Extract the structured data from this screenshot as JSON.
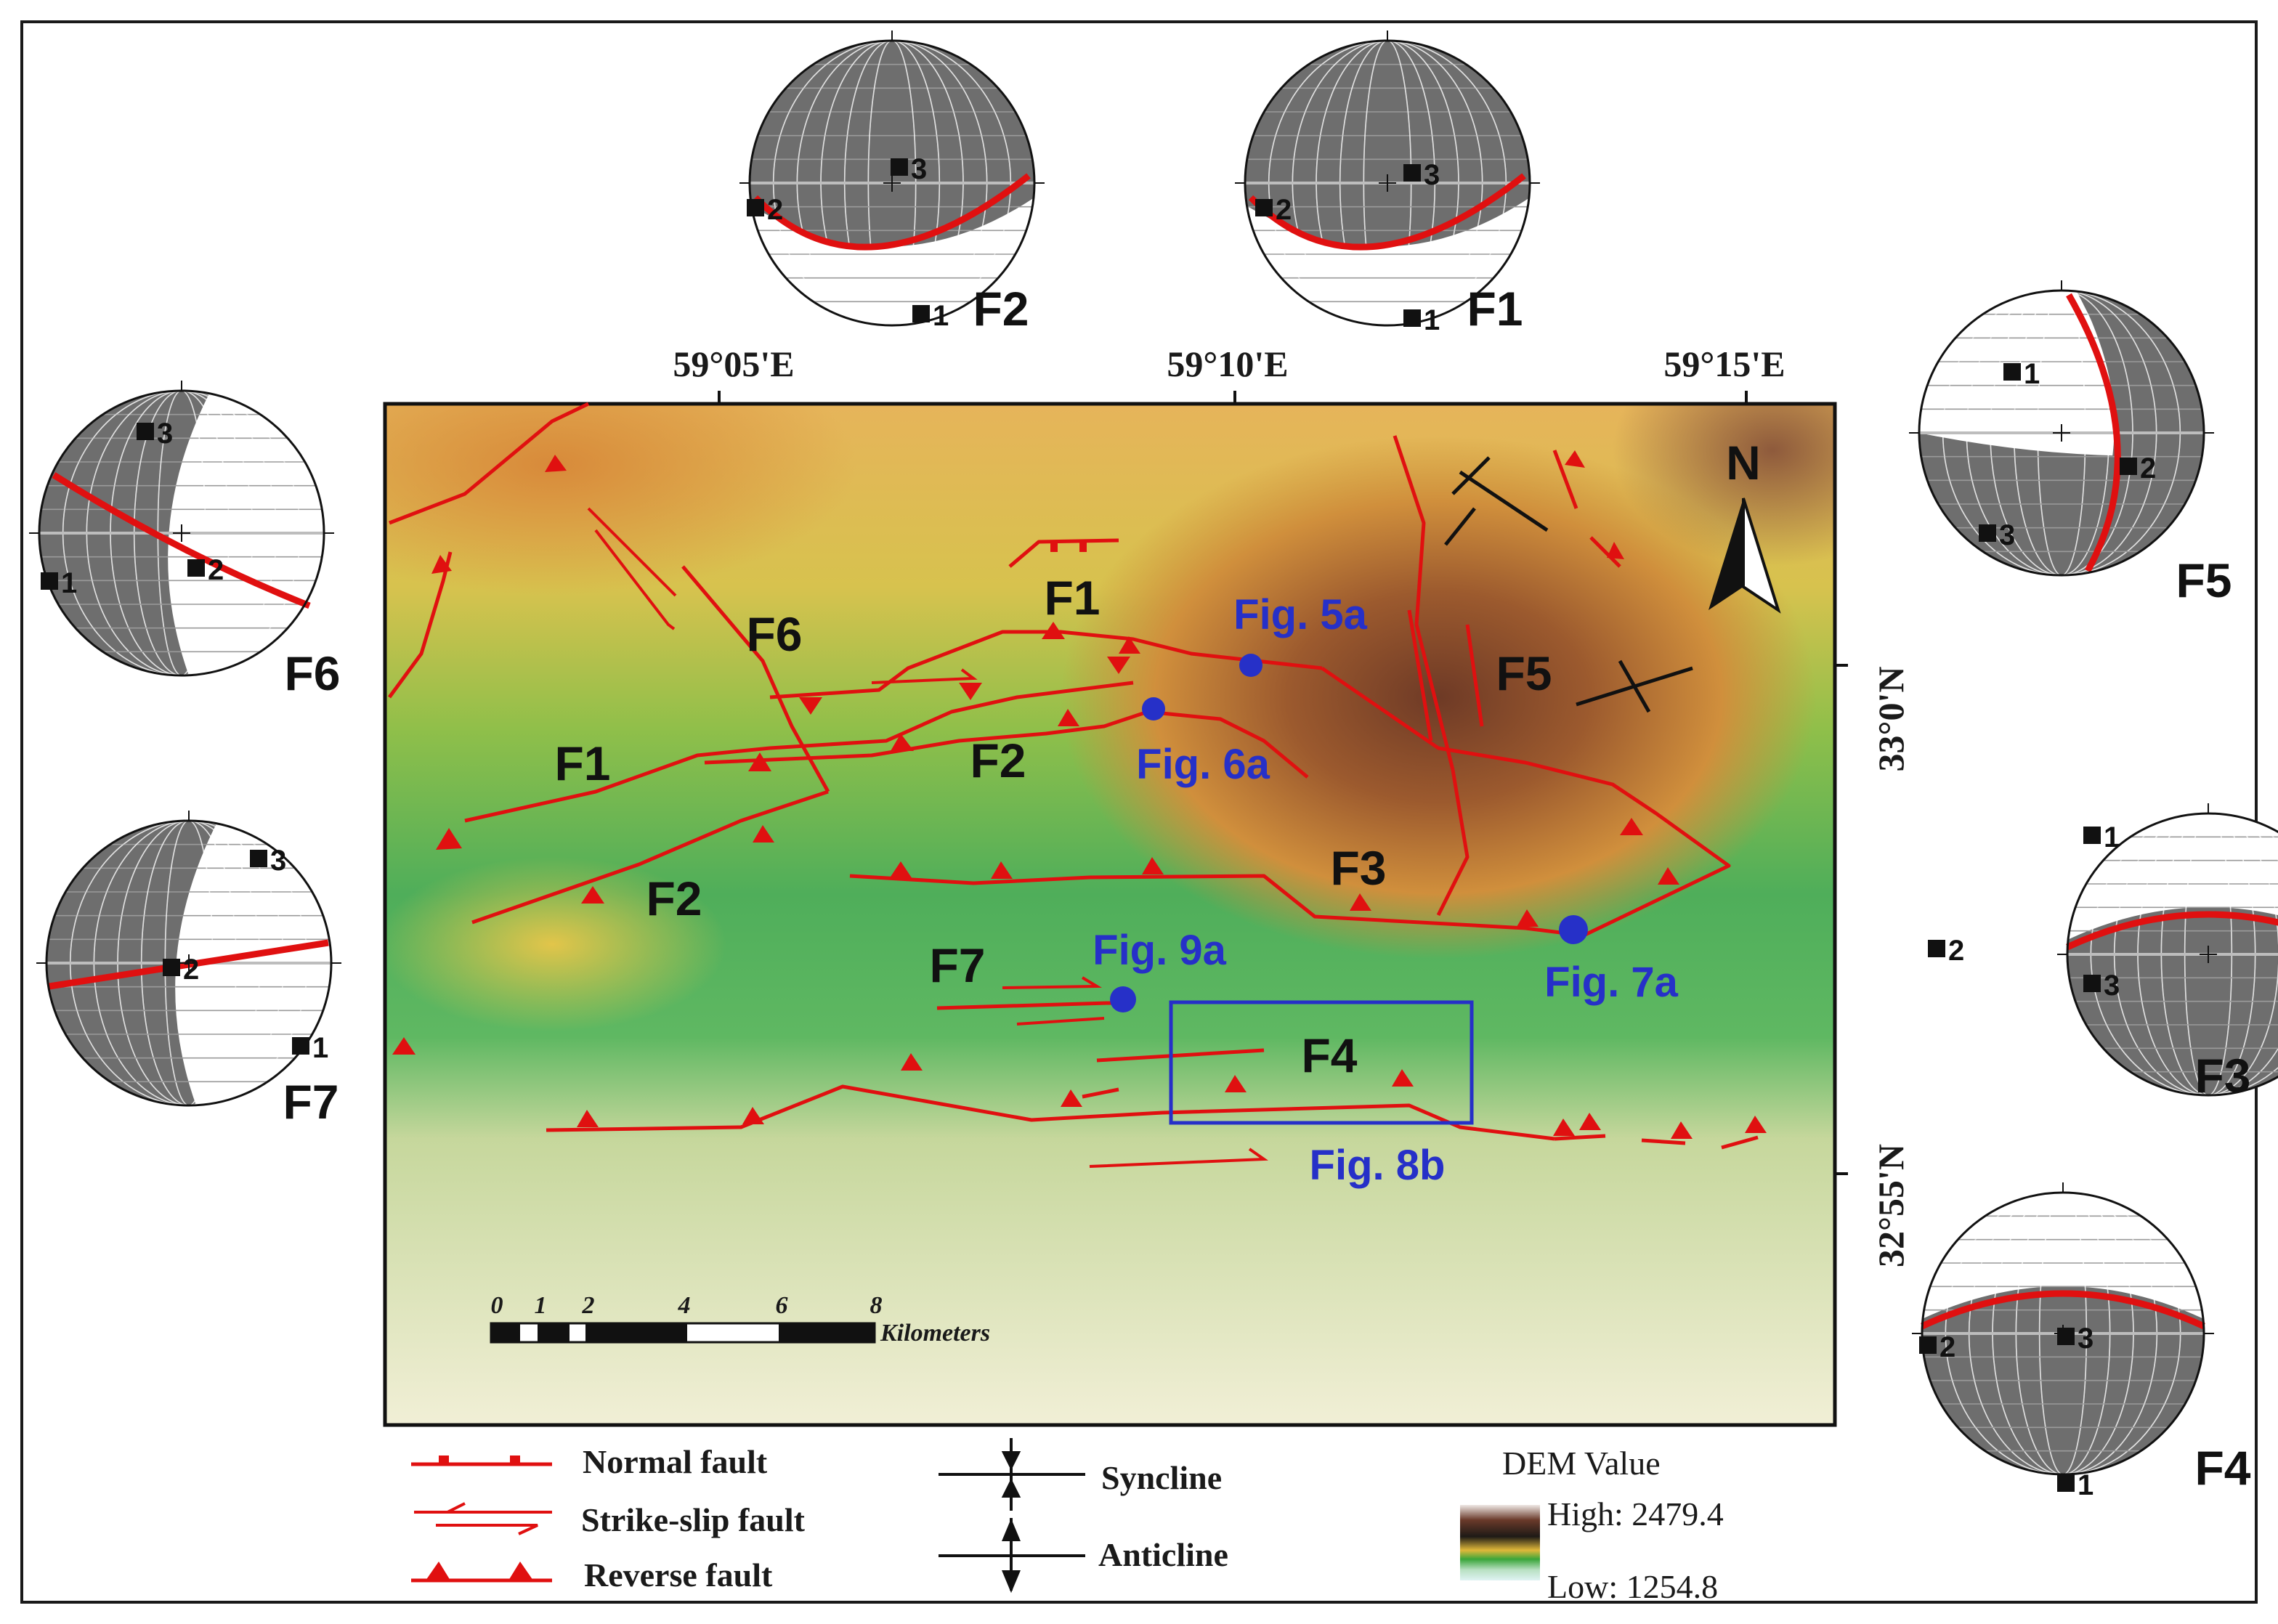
{
  "map": {
    "lon_labels": [
      "59°05'E",
      "59°10'E",
      "59°15'E"
    ],
    "lat_labels": [
      "33°0'N",
      "32°55'N"
    ],
    "north_label": "N"
  },
  "fault_labels": {
    "f1_north": "F1",
    "f1_west": "F1",
    "f2_center": "F2",
    "f2_south": "F2",
    "f3": "F3",
    "f4": "F4",
    "f5": "F5",
    "f6": "F6",
    "f7": "F7"
  },
  "figure_refs": {
    "fig5a": "Fig. 5a",
    "fig6a": "Fig. 6a",
    "fig7a": "Fig. 7a",
    "fig8b": "Fig. 8b",
    "fig9a": "Fig. 9a"
  },
  "stereonets": [
    {
      "label": "F1",
      "points": [
        "1",
        "2",
        "3"
      ]
    },
    {
      "label": "F2",
      "points": [
        "1",
        "2",
        "3"
      ]
    },
    {
      "label": "F3",
      "points": [
        "1",
        "2",
        "3"
      ]
    },
    {
      "label": "F4",
      "points": [
        "1",
        "2",
        "3"
      ]
    },
    {
      "label": "F5",
      "points": [
        "1",
        "2",
        "3"
      ]
    },
    {
      "label": "F6",
      "points": [
        "1",
        "2",
        "3"
      ]
    },
    {
      "label": "F7",
      "points": [
        "1",
        "2",
        "3"
      ]
    }
  ],
  "scale_bar": {
    "ticks": [
      "0",
      "1",
      "2",
      "4",
      "6",
      "8"
    ],
    "unit": "Kilometers"
  },
  "legend": {
    "normal_fault": "Normal fault",
    "strike_slip_fault": "Strike-slip fault",
    "reverse_fault": "Reverse fault",
    "syncline": "Syncline",
    "anticline": "Anticline"
  },
  "dem": {
    "title": "DEM Value",
    "high": "High: 2479.4",
    "low": "Low: 1254.8"
  },
  "colors": {
    "fault": "#e01010",
    "figure_marker": "#2630c8",
    "dem_high": "#7a3a22",
    "dem_low": "#f2efcf"
  }
}
